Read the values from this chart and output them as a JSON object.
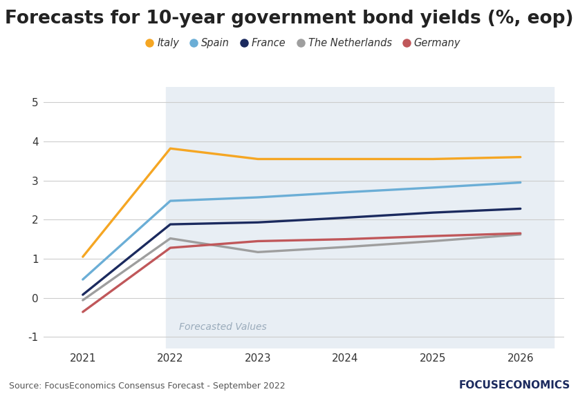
{
  "title": "Forecasts for 10-year government bond yields (%, eop)",
  "source": "Source: FocusEconomics Consensus Forecast - September 2022",
  "watermark": "Forecasted Values",
  "x_years": [
    2021,
    2022,
    2023,
    2024,
    2025,
    2026
  ],
  "forecast_start": 2022,
  "series": {
    "Italy": {
      "color": "#F5A623",
      "values": [
        1.05,
        3.82,
        3.55,
        3.55,
        3.55,
        3.6
      ]
    },
    "Spain": {
      "color": "#6BAED6",
      "values": [
        0.47,
        2.48,
        2.57,
        2.7,
        2.82,
        2.95
      ]
    },
    "France": {
      "color": "#1B2A5E",
      "values": [
        0.08,
        1.88,
        1.93,
        2.05,
        2.18,
        2.28
      ]
    },
    "The Netherlands": {
      "color": "#9E9E9E",
      "values": [
        -0.06,
        1.52,
        1.17,
        1.3,
        1.45,
        1.62
      ]
    },
    "Germany": {
      "color": "#C0575A",
      "values": [
        -0.36,
        1.28,
        1.45,
        1.5,
        1.58,
        1.65
      ]
    }
  },
  "ylim": [
    -1.3,
    5.4
  ],
  "yticks": [
    -1,
    0,
    1,
    2,
    3,
    4,
    5
  ],
  "xlim": [
    2020.55,
    2026.5
  ],
  "background_color": "#FFFFFF",
  "forecast_bg_color": "#E8EEF4",
  "grid_color": "#CCCCCC",
  "linewidth": 2.4,
  "legend_fontsize": 10.5,
  "title_fontsize": 19,
  "source_fontsize": 9,
  "watermark_fontsize": 10,
  "focuseconomics_color": "#1B2A5E"
}
